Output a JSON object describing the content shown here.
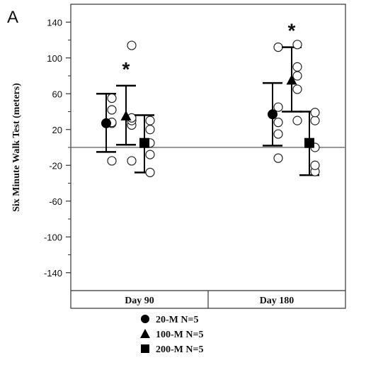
{
  "panel_label": "A",
  "chart_data": {
    "type": "scatter",
    "ylabel": "Six Minute Walk Test (meters)",
    "ylim": [
      -160,
      160
    ],
    "yticks": [
      140,
      100,
      60,
      20,
      -20,
      -60,
      -100,
      -140
    ],
    "ytick_labels": [
      "140",
      "100",
      "60",
      "20",
      "-20",
      "-60",
      "-100",
      "-140"
    ],
    "reference_line_y": 0,
    "grid": false,
    "legend_position": "bottom",
    "categories": [
      "Day 90",
      "Day 180"
    ],
    "series": [
      {
        "name": "20-M N=5",
        "marker": "circle",
        "mean": [
          27,
          37
        ],
        "error_low": [
          -5,
          2
        ],
        "error_high": [
          60,
          72
        ],
        "individual": [
          [
            -15,
            27,
            42,
            55,
            28
          ],
          [
            -12,
            15,
            28,
            45,
            112
          ]
        ],
        "significant": [
          false,
          false
        ]
      },
      {
        "name": "100-M N=5",
        "marker": "triangle",
        "mean": [
          35,
          75
        ],
        "error_low": [
          3,
          40
        ],
        "error_high": [
          69,
          112
        ],
        "individual": [
          [
            -15,
            25,
            30,
            33,
            114
          ],
          [
            30,
            65,
            80,
            90,
            115
          ]
        ],
        "significant": [
          true,
          true
        ]
      },
      {
        "name": "200-M N=5",
        "marker": "square",
        "mean": [
          5,
          5
        ],
        "error_low": [
          -28,
          -31
        ],
        "error_high": [
          36,
          40
        ],
        "individual": [
          [
            -28,
            -8,
            5,
            20,
            30
          ],
          [
            -27,
            -20,
            0,
            30,
            39
          ]
        ],
        "significant": [
          false,
          false
        ]
      }
    ],
    "significance_marker": "*"
  }
}
